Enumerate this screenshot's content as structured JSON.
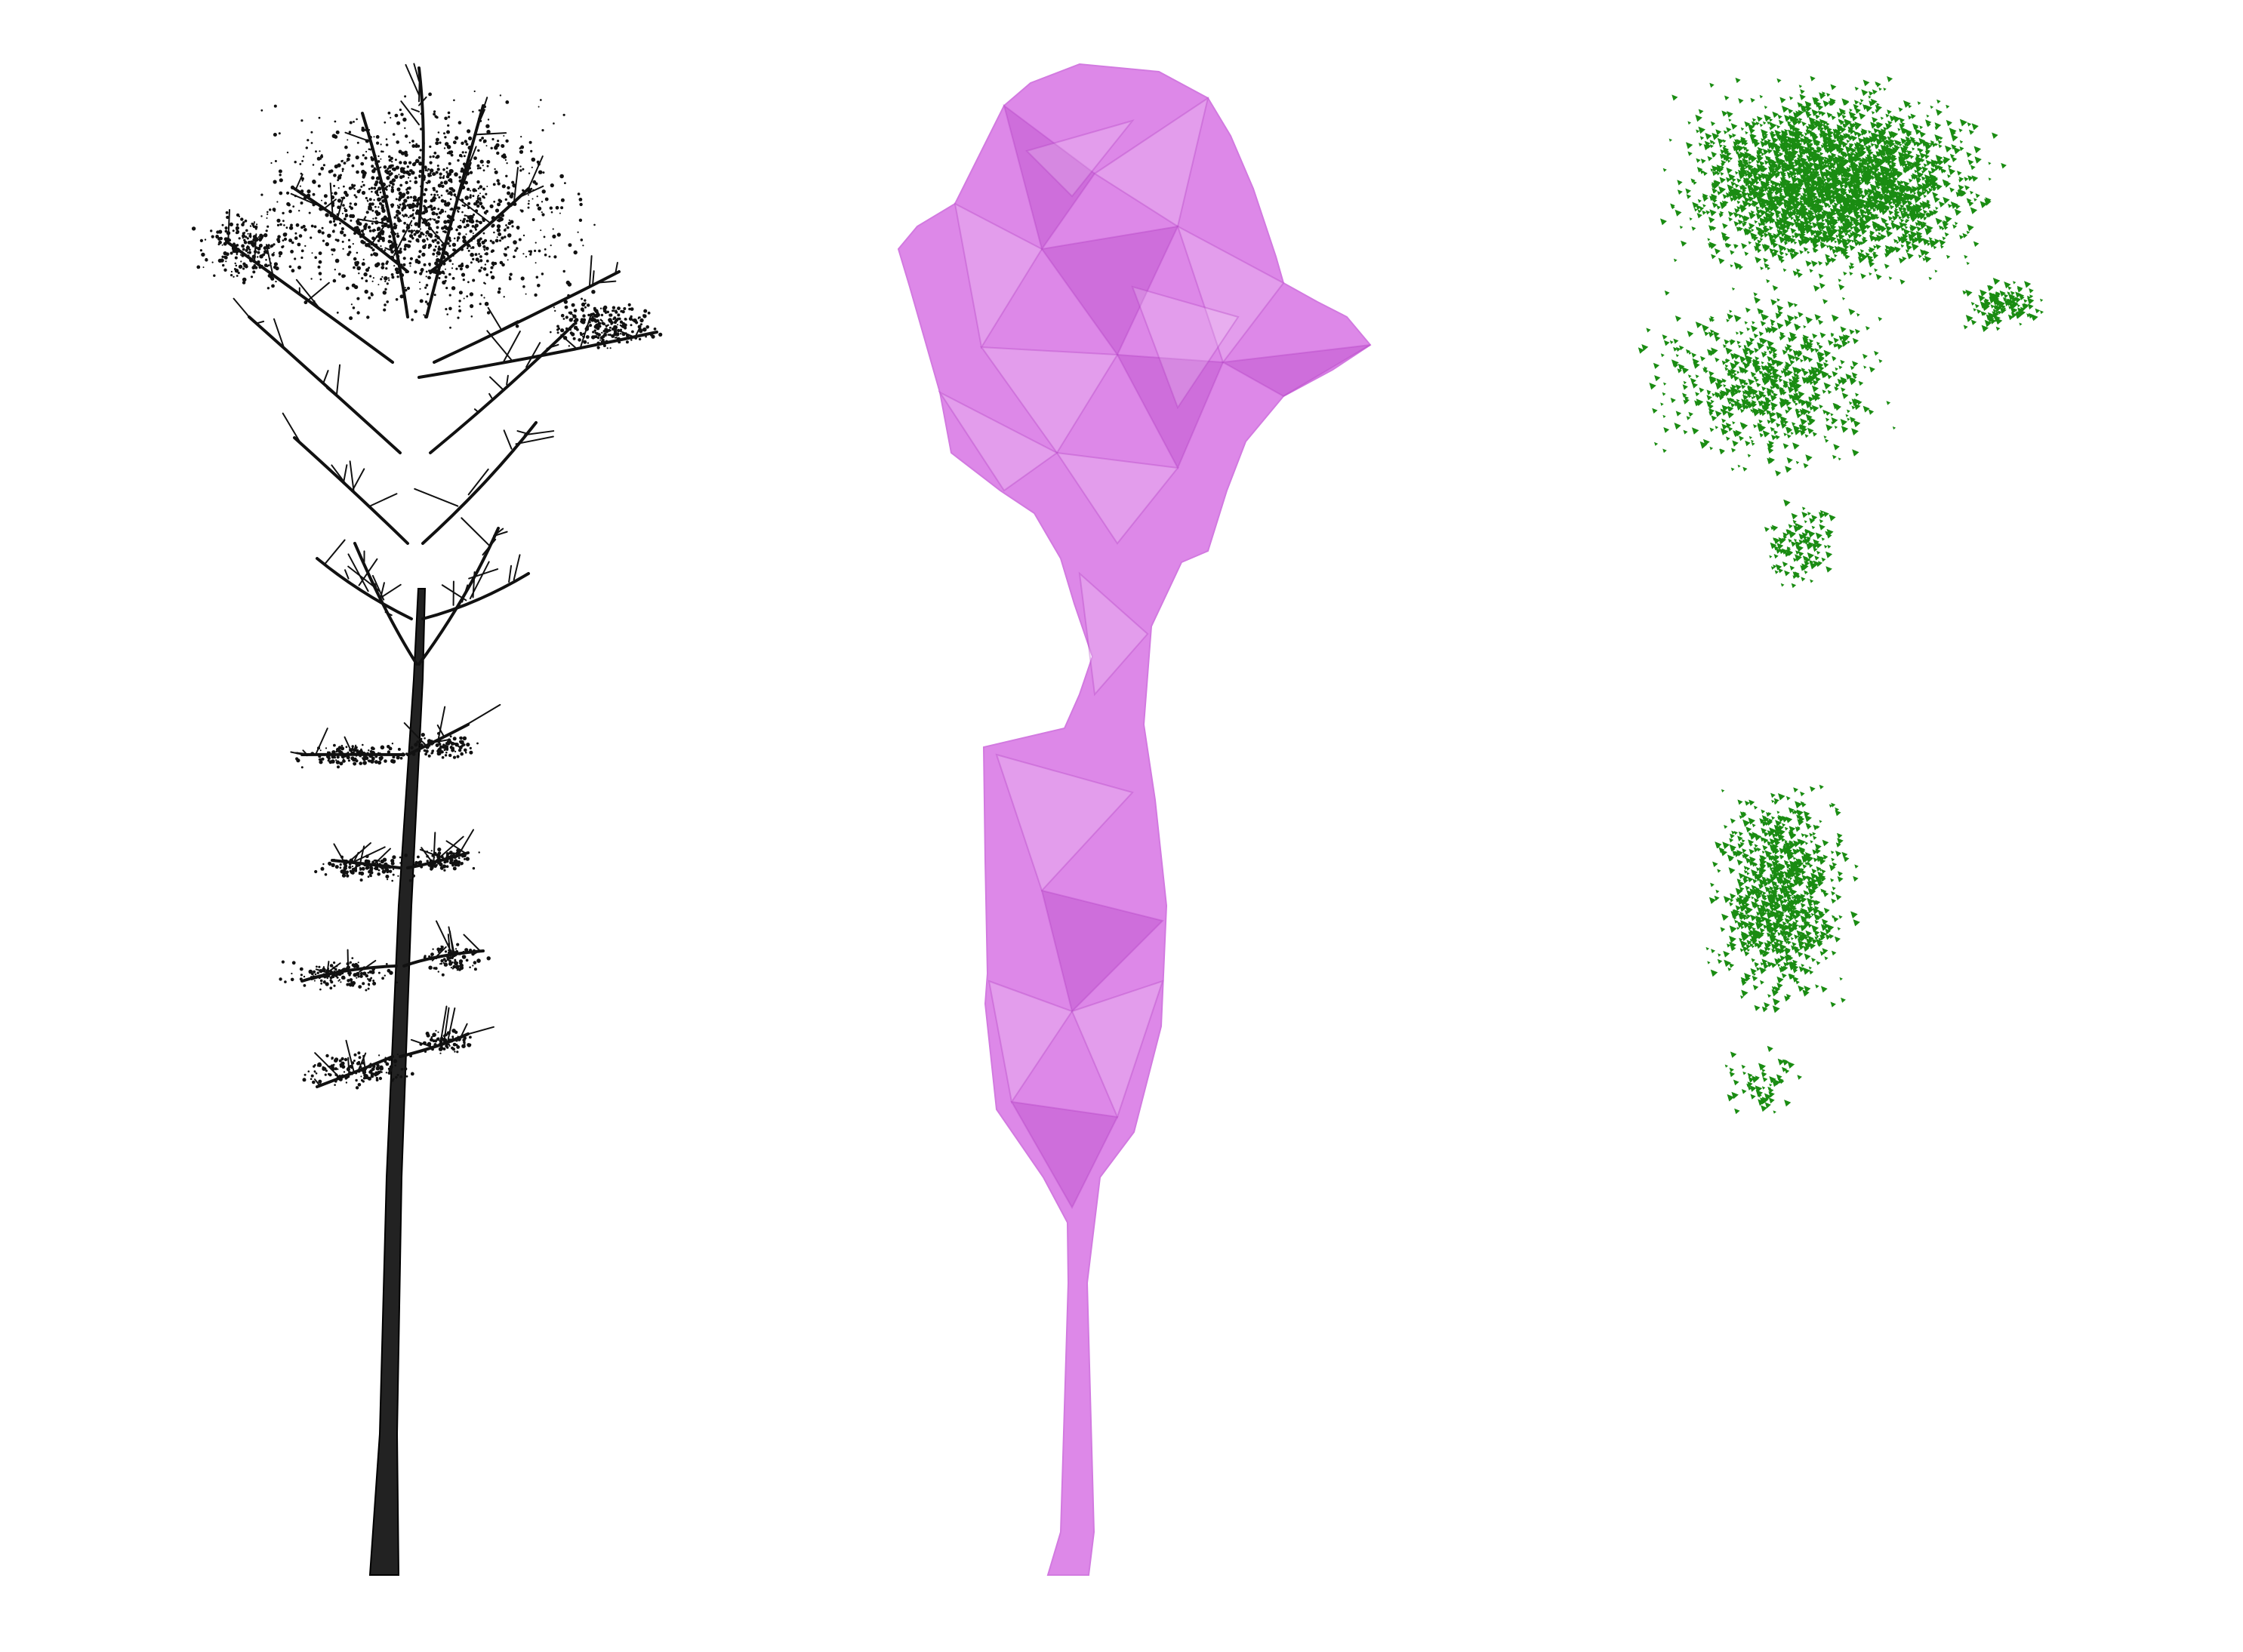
{
  "figure": {
    "panels": [
      {
        "id": "point-cloud",
        "kind": "tree point cloud",
        "color": "#111111"
      },
      {
        "id": "hull-mesh",
        "kind": "crown and stem hull mesh",
        "color": "#dd88e8",
        "fold_color": "#b13fc3"
      },
      {
        "id": "leaf-points",
        "kind": "simulated leaf scatter",
        "color": "#1a8c12"
      }
    ]
  }
}
